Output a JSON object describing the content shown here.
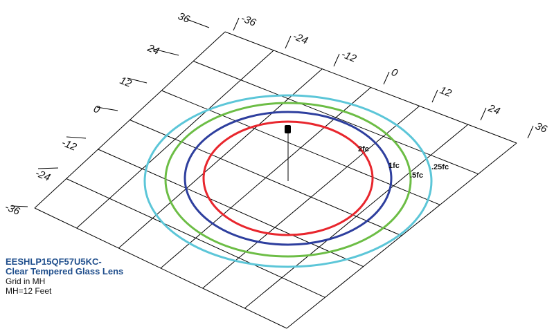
{
  "left_axis": {
    "ticks": [
      "36",
      "24",
      "12",
      "0",
      "-12",
      "-24",
      "-36"
    ]
  },
  "top_axis": {
    "ticks": [
      "-36",
      "-24",
      "-12",
      "0",
      "12",
      "24",
      "36"
    ]
  },
  "isolines": [
    {
      "label": "2fc",
      "color": "#e8262d"
    },
    {
      "label": "1fc",
      "color": "#2e3f9e"
    },
    {
      "label": ".5fc",
      "color": "#6cbd45"
    },
    {
      "label": ".25fc",
      "color": "#5cc6d8"
    }
  ],
  "info": {
    "title_line1": "EESHLP15QF57U5KC-",
    "title_line2": "Clear Tempered Glass Lens",
    "note1": "Grid in MH",
    "note2": "MH=12 Feet"
  }
}
